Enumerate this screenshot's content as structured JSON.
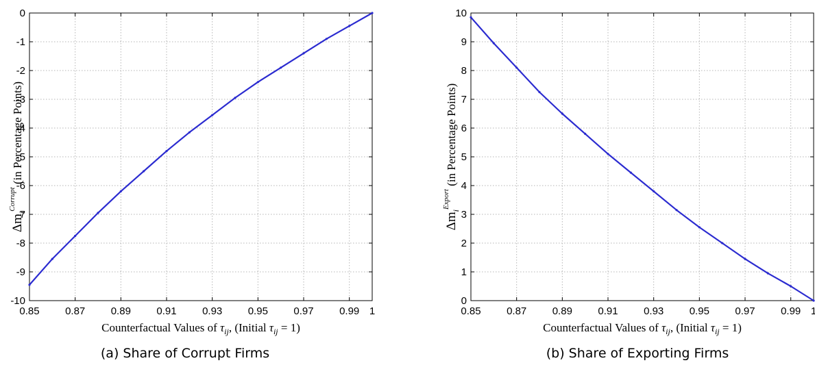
{
  "chart_data": [
    {
      "type": "line",
      "caption": "(a) Share of Corrupt Firms",
      "xlabel": "Counterfactual Values of τij, (Initial τij = 1)",
      "ylabel": "Δm_i^Corrupt (in Percentage Points)",
      "xlim": [
        0.85,
        1.0
      ],
      "ylim": [
        -10,
        0
      ],
      "grid": true,
      "x_ticks": [
        "0.85",
        "0.87",
        "0.89",
        "0.91",
        "0.93",
        "0.95",
        "0.97",
        "0.99",
        "1"
      ],
      "y_ticks": [
        "0",
        "-1",
        "-2",
        "-3",
        "-4",
        "-5",
        "-6",
        "-7",
        "-8",
        "-9",
        "-10"
      ],
      "series": [
        {
          "color": "#2b2bd0",
          "x": [
            0.85,
            0.86,
            0.87,
            0.88,
            0.89,
            0.9,
            0.91,
            0.92,
            0.93,
            0.94,
            0.95,
            0.96,
            0.97,
            0.98,
            0.99,
            1.0
          ],
          "y": [
            -9.45,
            -8.55,
            -7.75,
            -6.95,
            -6.2,
            -5.5,
            -4.8,
            -4.15,
            -3.55,
            -2.95,
            -2.4,
            -1.9,
            -1.4,
            -0.9,
            -0.45,
            0
          ]
        }
      ]
    },
    {
      "type": "line",
      "caption": "(b) Share of Exporting Firms",
      "xlabel": "Counterfactual Values of τij, (Initial τij = 1)",
      "ylabel": "Δm_i^Export (in Percentage Points)",
      "xlim": [
        0.85,
        1.0
      ],
      "ylim": [
        0,
        10
      ],
      "grid": true,
      "x_ticks": [
        "0.85",
        "0.87",
        "0.89",
        "0.91",
        "0.93",
        "0.95",
        "0.97",
        "0.99",
        "1"
      ],
      "y_ticks": [
        "10",
        "9",
        "8",
        "7",
        "6",
        "5",
        "4",
        "3",
        "2",
        "1",
        "0"
      ],
      "series": [
        {
          "color": "#2b2bd0",
          "x": [
            0.85,
            0.86,
            0.87,
            0.88,
            0.89,
            0.9,
            0.91,
            0.92,
            0.93,
            0.94,
            0.95,
            0.96,
            0.97,
            0.98,
            0.99,
            1.0
          ],
          "y": [
            9.85,
            8.95,
            8.1,
            7.25,
            6.5,
            5.8,
            5.1,
            4.45,
            3.8,
            3.15,
            2.55,
            2.0,
            1.45,
            0.95,
            0.5,
            0
          ]
        }
      ]
    }
  ],
  "captions": [
    "(a) Share of Corrupt Firms",
    "(b) Share of Exporting Firms"
  ],
  "axis_text": {
    "x_prefix": "Counterfactual Values of ",
    "x_tau": "τ",
    "x_sub": "ij",
    "x_mid": ", (Initial ",
    "x_eq": " = 1)",
    "delta_m": "Δm",
    "i_sub": "i",
    "sup_a": "Corrupt",
    "sup_b": "Export",
    "y_suffix": " (in Percentage Points)"
  }
}
